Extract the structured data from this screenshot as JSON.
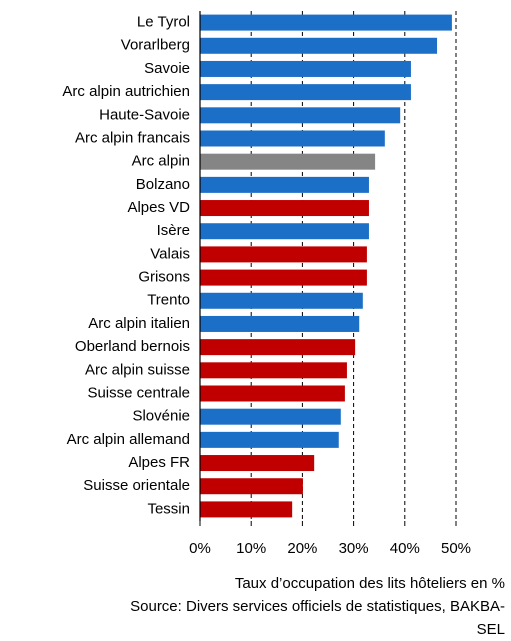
{
  "chart_data": {
    "type": "barh",
    "categories": [
      "Le Tyrol",
      "Vorarlberg",
      "Savoie",
      "Arc alpin autrichien",
      "Haute-Savoie",
      "Arc alpin francais",
      "Arc alpin",
      "Bolzano",
      "Alpes VD",
      "Isère",
      "Valais",
      "Grisons",
      "Trento",
      "Arc alpin italien",
      "Oberland bernois",
      "Arc alpin suisse",
      "Suisse centrale",
      "Slovénie",
      "Arc alpin allemand",
      "Alpes FR",
      "Suisse orientale",
      "Tessin"
    ],
    "values": [
      49.2,
      46.3,
      41.2,
      41.2,
      39.1,
      36.1,
      34.2,
      33.0,
      33.0,
      33.0,
      32.6,
      32.6,
      31.8,
      31.1,
      30.3,
      28.7,
      28.3,
      27.5,
      27.1,
      22.3,
      20.1,
      18.0
    ],
    "colors": [
      "#1c6fc6",
      "#1c6fc6",
      "#1c6fc6",
      "#1c6fc6",
      "#1c6fc6",
      "#1c6fc6",
      "#858585",
      "#1c6fc6",
      "#c00000",
      "#1c6fc6",
      "#c00000",
      "#c00000",
      "#1c6fc6",
      "#1c6fc6",
      "#c00000",
      "#c00000",
      "#c00000",
      "#1c6fc6",
      "#1c6fc6",
      "#c00000",
      "#c00000",
      "#c00000"
    ],
    "xlim": [
      0,
      50
    ],
    "xticks": [
      {
        "value": 0,
        "label": "0%"
      },
      {
        "value": 10,
        "label": "10%"
      },
      {
        "value": 20,
        "label": "20%"
      },
      {
        "value": 30,
        "label": "30%"
      },
      {
        "value": 40,
        "label": "40%"
      },
      {
        "value": 50,
        "label": "50%"
      }
    ],
    "grid": true,
    "xlabel": "Taux d’occupation des lits hôteliers en %",
    "source": [
      "Source: Divers services officiels de statistiques, BAKBA-",
      "SEL"
    ]
  }
}
